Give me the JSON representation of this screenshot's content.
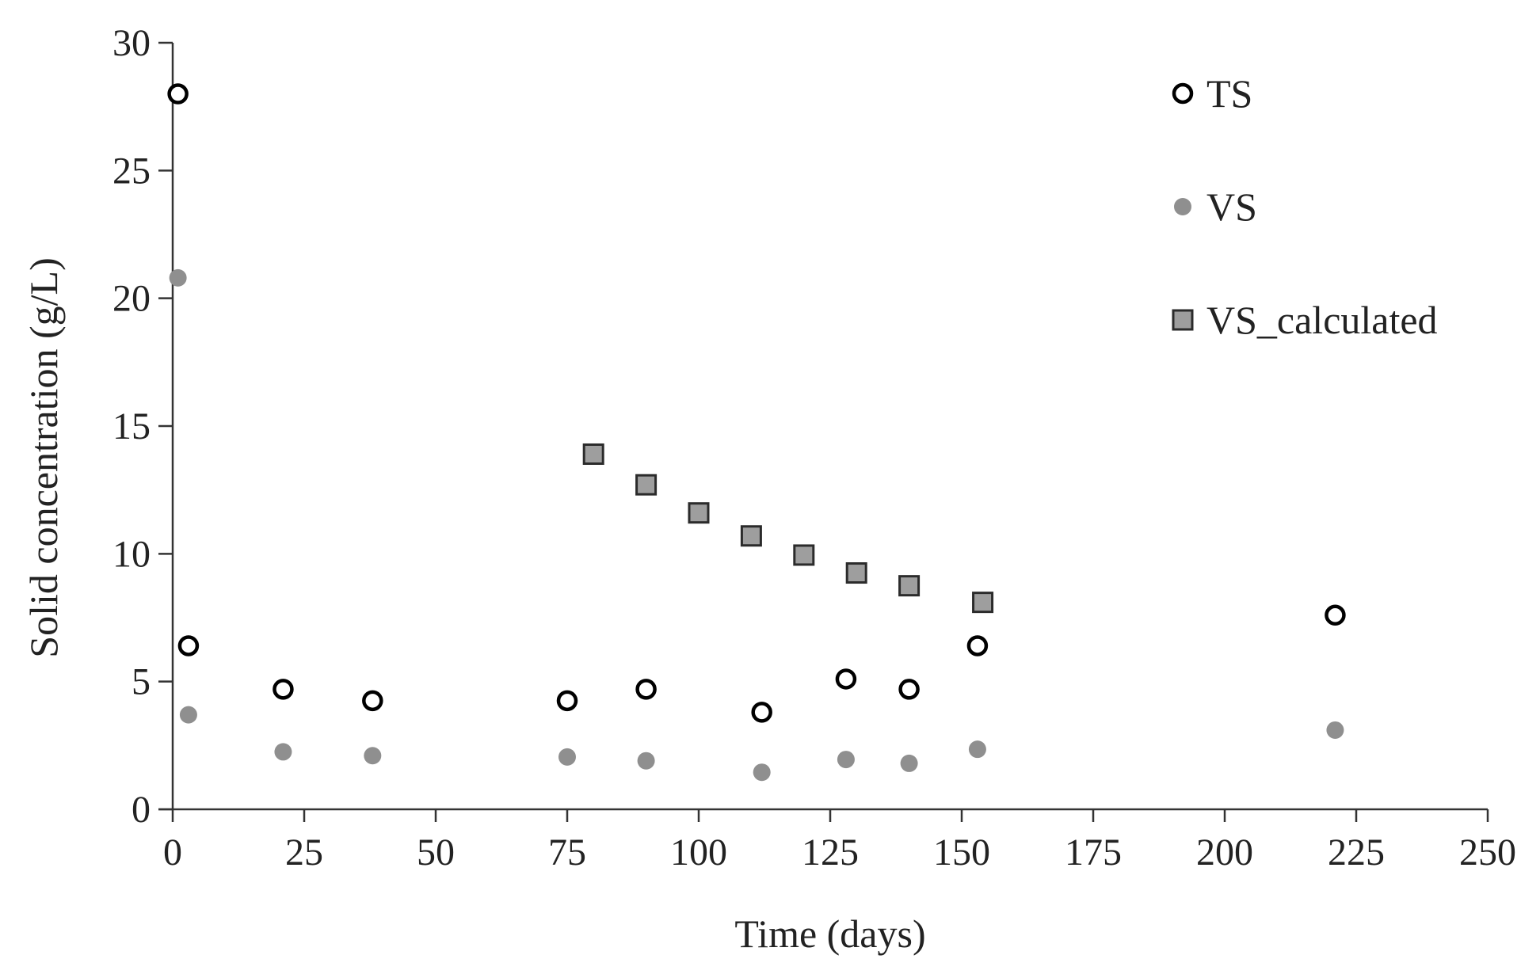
{
  "chart_data": {
    "type": "scatter",
    "title": "",
    "xlabel": "Time (days)",
    "ylabel": "Solid concentration (g/L)",
    "xlim": [
      0,
      250
    ],
    "ylim": [
      0,
      30
    ],
    "xticks": [
      0,
      25,
      50,
      75,
      100,
      125,
      150,
      175,
      200,
      225,
      250
    ],
    "yticks": [
      0,
      5,
      10,
      15,
      20,
      25,
      30
    ],
    "grid": false,
    "legend_position": "top-right",
    "series": [
      {
        "name": "TS",
        "marker": "open-circle",
        "color": "#000000",
        "x": [
          1,
          3,
          21,
          38,
          75,
          90,
          112,
          128,
          140,
          153,
          221
        ],
        "y": [
          28.0,
          6.4,
          4.7,
          4.25,
          4.25,
          4.7,
          3.8,
          5.1,
          4.7,
          6.4,
          7.6
        ]
      },
      {
        "name": "VS",
        "marker": "filled-circle",
        "color": "#8f8f8f",
        "x": [
          1,
          3,
          21,
          38,
          75,
          90,
          112,
          128,
          140,
          153,
          221
        ],
        "y": [
          20.8,
          3.7,
          2.25,
          2.1,
          2.05,
          1.9,
          1.45,
          1.95,
          1.8,
          2.35,
          3.1
        ]
      },
      {
        "name": "VS_calculated",
        "marker": "filled-square",
        "color": "#9e9e9e",
        "x": [
          80,
          90,
          100,
          110,
          120,
          130,
          140,
          154
        ],
        "y": [
          13.9,
          12.7,
          11.6,
          10.7,
          9.95,
          9.25,
          8.75,
          8.1
        ]
      }
    ]
  }
}
